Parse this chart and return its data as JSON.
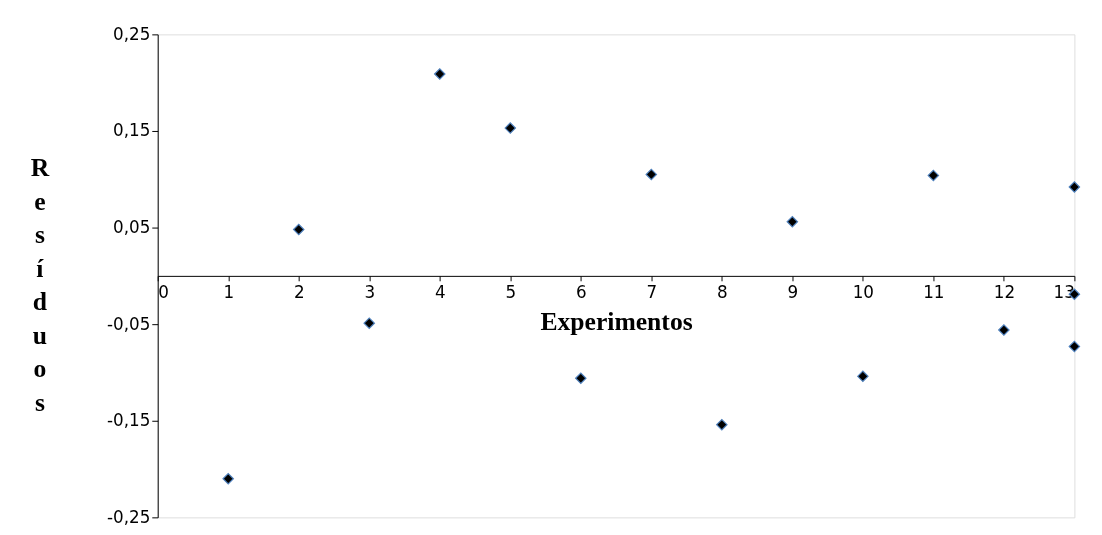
{
  "chart_data": {
    "type": "scatter",
    "xlabel": "Experimentos",
    "ylabel": "Resíduos",
    "x": [
      1,
      2,
      3,
      4,
      5,
      6,
      7,
      8,
      9,
      10,
      11,
      12,
      13,
      13,
      13
    ],
    "values": [
      -0.21,
      0.048,
      -0.049,
      0.209,
      0.153,
      -0.106,
      0.105,
      -0.154,
      0.056,
      -0.104,
      0.104,
      -0.056,
      0.092,
      -0.019,
      -0.073
    ],
    "color": "#000000",
    "marker": "diamond",
    "xlim": [
      0,
      13
    ],
    "xticks": [
      0,
      1,
      2,
      3,
      4,
      5,
      6,
      7,
      8,
      9,
      10,
      11,
      12,
      13
    ],
    "ylim": [
      -0.25,
      0.25
    ],
    "yticks": [
      {
        "value": -0.25,
        "label": "-0,25"
      },
      {
        "value": -0.15,
        "label": "-0,15"
      },
      {
        "value": -0.05,
        "label": "-0,05"
      },
      {
        "value": 0.05,
        "label": "0,05"
      },
      {
        "value": 0.15,
        "label": "0,15"
      },
      {
        "value": 0.25,
        "label": "0,25"
      }
    ],
    "grid": false
  }
}
